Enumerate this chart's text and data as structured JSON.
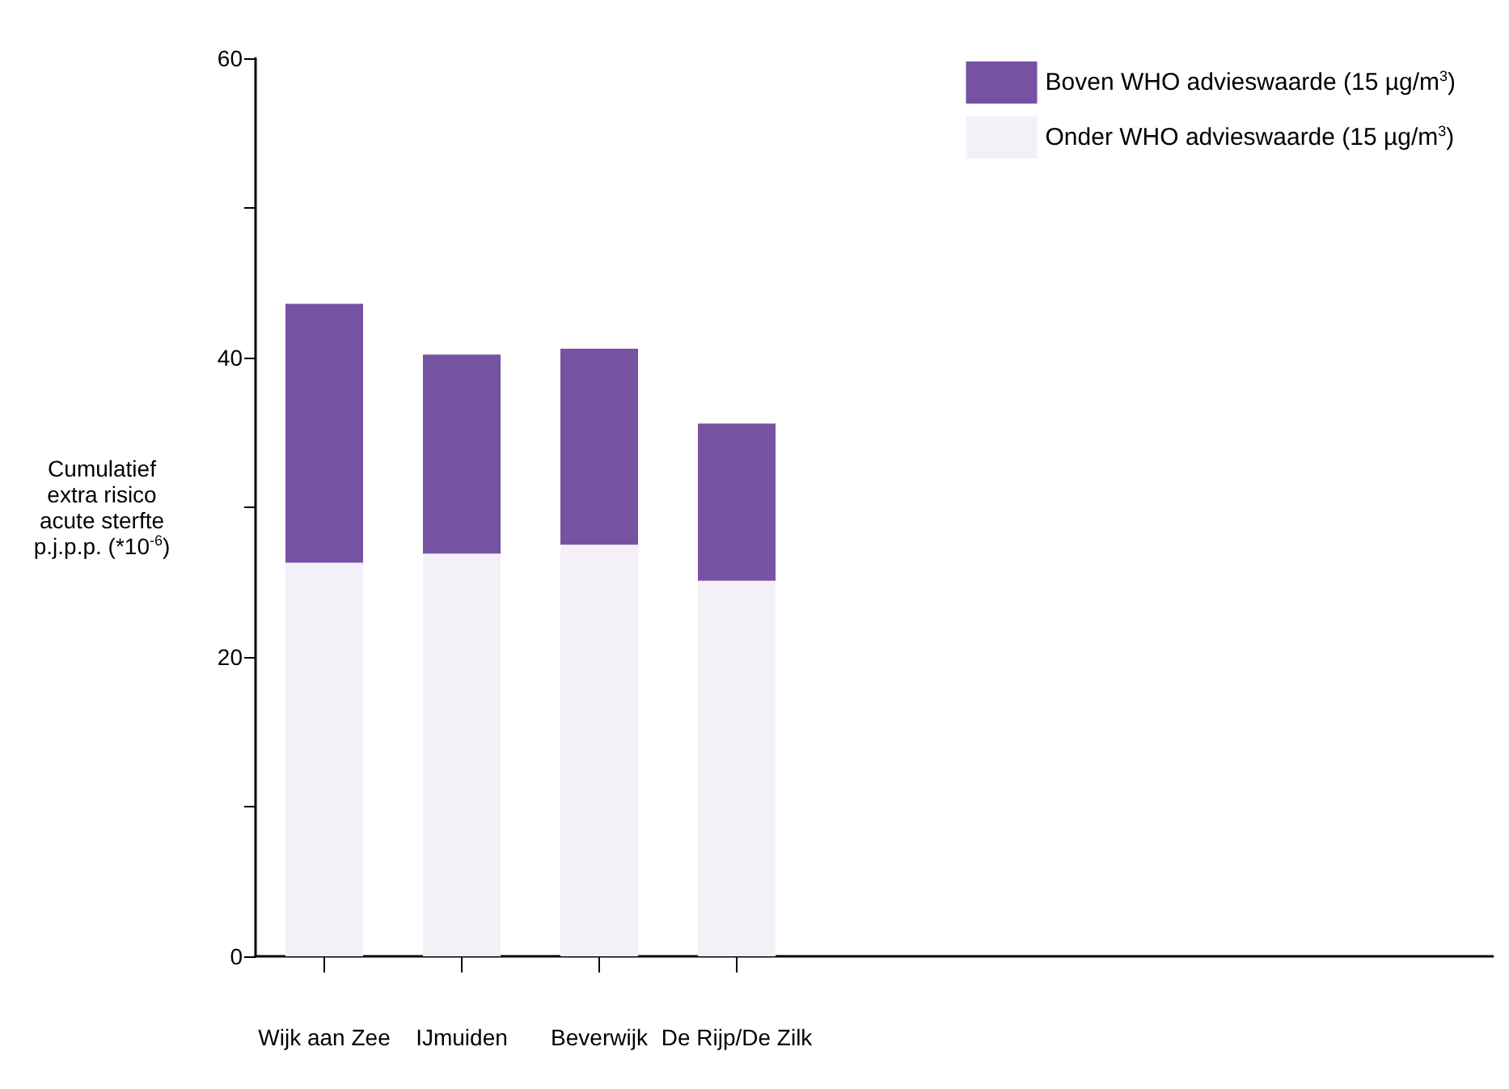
{
  "chart_data": {
    "type": "bar",
    "stacked": true,
    "ylabel": "Cumulatief extra risico acute sterfte p.j.p.p. (*10$^{-6}$)",
    "categories": [
      "Wijk aan Zee",
      "IJmuiden",
      "Beverwijk",
      "De Rijp/De Zilk",
      null,
      null,
      null,
      null,
      null
    ],
    "series": [
      {
        "name": "Onder WHO advieswaarde (15 µg/m$^{3}$)",
        "color": "#f3f0f8",
        "values": [
          26.3,
          26.9,
          27.5,
          25.1,
          null,
          null,
          null,
          null,
          null
        ]
      },
      {
        "name": "Boven WHO advieswaarde (15 µg/m$^{3}$)",
        "color": "#7652a3",
        "values": [
          17.3,
          13.3,
          13.1,
          10.5,
          null,
          null,
          null,
          null,
          null
        ]
      }
    ],
    "ylim": [
      0,
      60
    ],
    "yticks": [
      0,
      {
        "value": 10,
        "label": null
      },
      20,
      {
        "value": 30,
        "label": null
      },
      40,
      {
        "value": 50,
        "label": null
      },
      60
    ],
    "grid": false,
    "legend": "top right"
  }
}
